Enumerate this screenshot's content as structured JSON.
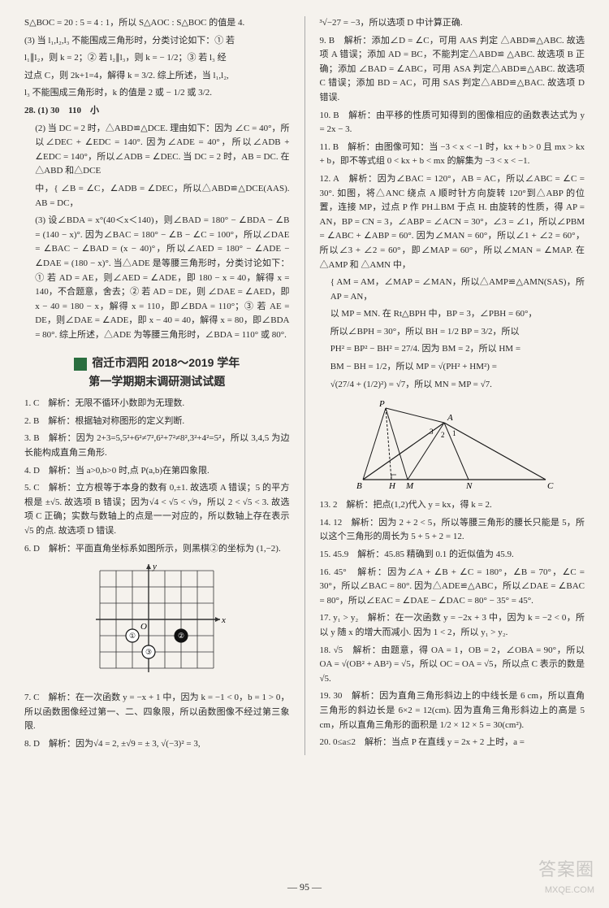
{
  "left": {
    "p1": "S△BOC = 20 : 5 = 4 : 1，所以 S△AOC : S△BOC 的值是 4.",
    "p2": "(3) 当 l₁,l₂,l₃ 不能围成三角形时，分类讨论如下：① 若",
    "p3": "l₁∥l₂，则 k = 2；② 若 l₂∥l₃，则 k = − 1/2；③ 若 l₃ 经",
    "p4": "过点 C，则 2k+1=4，解得 k = 3/2. 综上所述，当 l₁,l₂,",
    "p5": "l₃ 不能围成三角形时，k 的值是 2 或 − 1/2 或 3/2.",
    "q28_1": "28. (1) 30　110　小",
    "q28_2": "(2) 当 DC = 2 时，△ABD≌△DCE. 理由如下：因为 ∠C = 40°，所以∠DEC + ∠EDC = 140°. 因为∠ADE = 40°，所以∠ADB + ∠EDC = 140°，所以∠ADB = ∠DEC. 当 DC = 2 时，AB = DC. 在△ABD 和△DCE",
    "q28_3": "中，{ ∠B = ∠C，∠ADB = ∠DEC，所以△ABD≌△DCE(AAS). AB = DC，",
    "q28_4": "(3) 设∠BDA = x°(40＜x＜140)，则∠BAD = 180° − ∠BDA − ∠B = (140 − x)°. 因为∠BAC = 180° − ∠B − ∠C = 100°，所以∠DAE = ∠BAC − ∠BAD = (x − 40)°，所以∠AED = 180° − ∠ADE − ∠DAE = (180 − x)°. 当△ADE 是等腰三角形时，分类讨论如下：① 若 AD = AE，则∠AED = ∠ADE，即 180 − x = 40，解得 x = 140，不合题意，舍去；② 若 AD = DE，则 ∠DAE = ∠AED，即 x − 40 = 180 − x，解得 x = 110，即∠BDA = 110°；③ 若 AE = DE，则∠DAE = ∠ADE，即 x − 40 = 40，解得 x = 80，即∠BDA = 80°. 综上所述，△ADE 为等腰三角形时，∠BDA = 110° 或 80°.",
    "title_line1": "宿迁市泗阳 2018～2019 学年",
    "title_line2": "第一学期期末调研测试试题",
    "a1": "1. C　解析：无限不循环小数即为无理数.",
    "a2": "2. B　解析：根据轴对称图形的定义判断.",
    "a3": "3. B　解析：因为 2+3=5,5²+6²≠7²,6²+7²≠8²,3²+4²=5²，所以 3,4,5 为边长能构成直角三角形.",
    "a4": "4. D　解析：当 a>0,b>0 时,点 P(a,b)在第四象限.",
    "a5": "5. C　解析：立方根等于本身的数有 0,±1. 故选项 A 错误；5 的平方根是 ±√5. 故选项 B 错误；因为√4 < √5 < √9，所以 2 < √5 < 3. 故选项 C 正确；实数与数轴上的点是一一对应的，所以数轴上存在表示√5 的点. 故选项 D 错误.",
    "a6": "6. D　解析：平面直角坐标系如图所示，则黑棋②的坐标为 (1,−2).",
    "a7": "7. C　解析：在一次函数 y = −x + 1 中，因为 k = −1 < 0，b = 1 > 0，所以函数图像经过第一、二、四象限，所以函数图像不经过第三象限.",
    "a8": "8. D　解析：因为√4 = 2, ±√9 = ± 3, √(−3)² = 3,"
  },
  "right": {
    "p1": "³√−27 = −3，所以选项 D 中计算正确.",
    "a9": "9. B　解析：添加∠D = ∠C，可用 AAS 判定 △ABD≌△ABC. 故选项 A 错误；添加 AD = BC，不能判定△ABD≌ △ABC. 故选项 B 正确；添加 ∠BAD = ∠ABC，可用 ASA 判定△ABD≌△ABC. 故选项 C 错误；添加 BD = AC，可用 SAS 判定△ABD≌△BAC. 故选项 D 错误.",
    "a10": "10. B　解析：由平移的性质可知得到的图像相应的函数表达式为 y = 2x − 3.",
    "a11": "11. B　解析：由图像可知：当 −3 < x < −1 时，kx + b > 0 且 mx > kx + b，即不等式组 0 < kx + b < mx 的解集为 −3 < x < −1.",
    "a12": "12. A　解析：因为∠BAC = 120°，AB = AC，所以∠ABC = ∠C = 30°. 如图，将△ANC 绕点 A 顺时针方向旋转 120°到△ABP 的位置，连接 MP，过点 P 作 PH⊥BM 于点 H. 由旋转的性质，得 AP = AN，BP = CN = 3，∠ABP = ∠ACN = 30°，∠3 = ∠1，所以∠PBM = ∠ABC + ∠ABP = 60°. 因为∠MAN = 60°，所以∠1 + ∠2 = 60°，所以∠3 + ∠2 = 60°，即∠MAP = 60°，所以∠MAN = ∠MAP. 在 △AMP 和 △AMN 中，",
    "a12b": "{ AM = AM，∠MAP = ∠MAN，所以△AMP≌△AMN(SAS)，所 AP = AN，",
    "a12c": "以 MP = MN. 在 Rt△BPH 中，BP = 3，∠PBH = 60°，",
    "a12d": "所以∠BPH = 30°，所以 BH = 1/2 BP = 3/2，所以",
    "a12e": "PH² = BP² − BH² = 27/4. 因为 BM = 2，所以 HM =",
    "a12f": "BM − BH = 1/2，所以 MP = √(PH² + HM²) =",
    "a12g": "√(27/4 + (1/2)²) = √7，所以 MN = MP = √7.",
    "a13": "13. 2　解析：把点(1,2)代入 y = kx，得 k = 2.",
    "a14": "14. 12　解析：因为 2 + 2 < 5，所以等腰三角形的腰长只能是 5，所以这个三角形的周长为 5 + 5 + 2 = 12.",
    "a15": "15. 45.9　解析：45.85 精确到 0.1 的近似值为 45.9.",
    "a16": "16. 45°　解析：因为∠A + ∠B + ∠C = 180°，∠B = 70°，∠C = 30°，所以∠BAC = 80°. 因为△ADE≌△ABC，所以∠DAE = ∠BAC = 80°，所以∠EAC = ∠DAE − ∠DAC = 80° − 35° = 45°.",
    "a17": "17. y₁ > y₂　解析：在一次函数 y = −2x + 3 中，因为 k = −2 < 0，所以 y 随 x 的增大而减小. 因为 1 < 2，所以 y₁ > y₂.",
    "a18": "18. √5　解析：由题意，得 OA = 1，OB = 2，∠OBA = 90°，所以 OA = √(OB² + AB²) = √5，所以 OC = OA = √5，所以点 C 表示的数是√5.",
    "a19": "19. 30　解析：因为直角三角形斜边上的中线长是 6 cm，所以直角三角形的斜边长是 6×2 = 12(cm). 因为直角三角形斜边上的高是 5 cm，所以直角三角形的面积是 1/2 × 12 × 5 = 30(cm²).",
    "a20": "20. 0≤a≤2　解析：当点 P 在直线 y = 2x + 2 上时，a ="
  },
  "grid": {
    "bg": "#ffffff",
    "grid_color": "#333333",
    "cols": 7,
    "rows": 6,
    "cell": 20,
    "axis_labels": {
      "x": "x",
      "y": "y",
      "o": "O"
    },
    "pieces": [
      {
        "id": "①",
        "type": "white",
        "gx": 2,
        "gy": 4
      },
      {
        "id": "②",
        "type": "black",
        "gx": 5,
        "gy": 4
      },
      {
        "id": "③",
        "type": "white",
        "gx": 3,
        "gy": 5
      }
    ]
  },
  "tri": {
    "stroke": "#1a1a1a",
    "labels": [
      "P",
      "A",
      "B",
      "H",
      "M",
      "N",
      "C"
    ],
    "angles": [
      "1",
      "2",
      "3"
    ]
  },
  "page_number": "— 95 —",
  "watermark": "答案圈",
  "watermark2": "MXQE.COM"
}
